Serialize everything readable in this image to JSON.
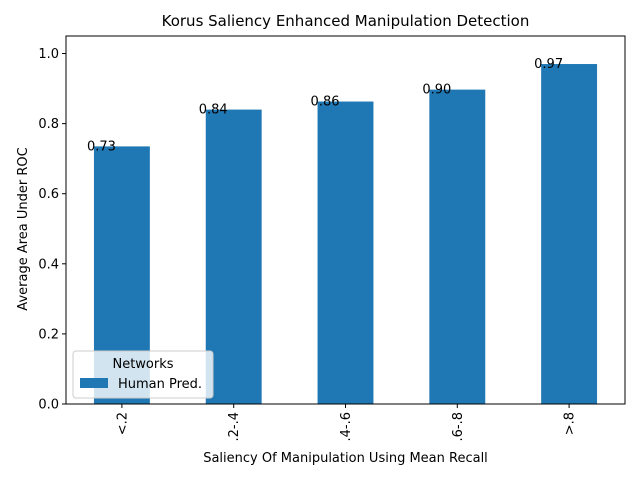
{
  "chart_data": {
    "type": "bar",
    "title": "Korus Saliency Enhanced Manipulation Detection",
    "xlabel": "Saliency Of Manipulation Using Mean Recall",
    "ylabel": "Average Area Under ROC",
    "categories": [
      "<.2",
      ".2-.4",
      ".4-.6",
      ".6-.8",
      ">.8"
    ],
    "series": [
      {
        "name": "Human Pred.",
        "values": [
          0.735,
          0.84,
          0.863,
          0.897,
          0.97
        ],
        "color": "#1f77b4"
      }
    ],
    "data_labels": [
      "0.73",
      "0.84",
      "0.86",
      "0.90",
      "0.97"
    ],
    "yticks": [
      0.0,
      0.2,
      0.4,
      0.6,
      0.8,
      1.0
    ],
    "ytick_labels": [
      "0.0",
      "0.2",
      "0.4",
      "0.6",
      "0.8",
      "1.0"
    ],
    "ylim": [
      0,
      1.05
    ],
    "grid": false,
    "legend": {
      "title": "Networks",
      "placement": "lower-left"
    },
    "xtick_rotation": 90
  }
}
